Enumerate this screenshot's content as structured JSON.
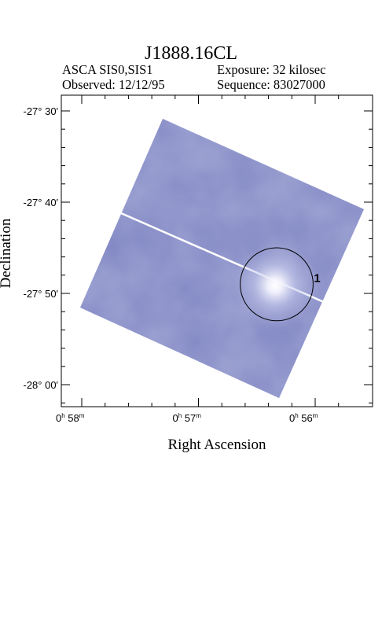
{
  "chart_data": {
    "type": "heatmap",
    "title": "J1888.16CL",
    "info": {
      "instrument": "ASCA SIS0,SIS1",
      "exposure": "Exposure: 32 kilosec",
      "observed": "Observed: 12/12/95",
      "sequence": "Sequence: 83027000"
    },
    "xlabel": "Right Ascension",
    "ylabel": "Declination",
    "x_ticks": [
      {
        "value_min": 58,
        "h": "0",
        "m": "58"
      },
      {
        "value_min": 57,
        "h": "0",
        "m": "57"
      },
      {
        "value_min": 56,
        "h": "0",
        "m": "56"
      }
    ],
    "y_ticks": [
      {
        "value_arcmin": -1650,
        "label": "-27° 30′"
      },
      {
        "value_arcmin": -1660,
        "label": "-27° 40′"
      },
      {
        "value_arcmin": -1670,
        "label": "-27° 50′"
      },
      {
        "value_arcmin": -1680,
        "label": "-28° 00′"
      }
    ],
    "source_regions": [
      {
        "label": "1",
        "ra_min": 56.33,
        "dec_arcmin": -1669.0,
        "radius_arcmin": 4.0
      }
    ],
    "colors": {
      "field": "#8187c3",
      "field_light": "#a7acd8",
      "source_core": "#ffffff",
      "axis": "#000000"
    }
  }
}
